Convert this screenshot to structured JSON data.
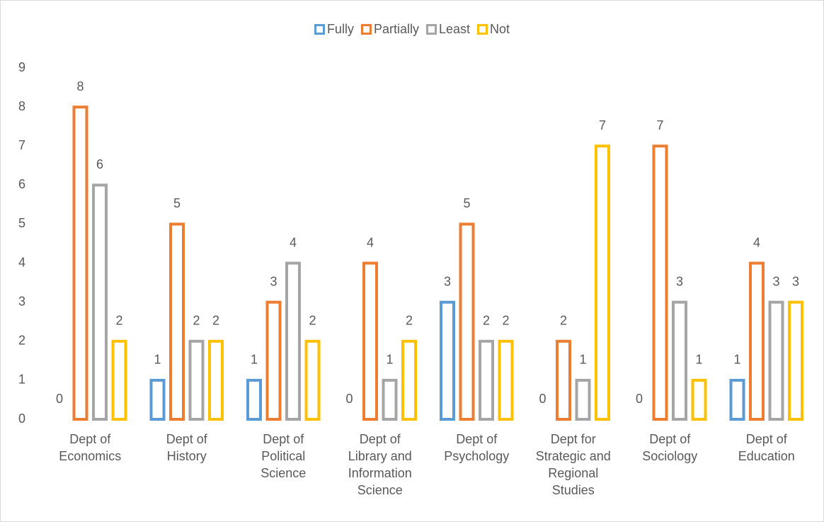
{
  "chart_data": {
    "type": "bar",
    "categories": [
      "Dept of Economics",
      "Dept of History",
      "Dept of Political Science",
      "Dept of Library and Information Science",
      "Dept of Psychology",
      "Dept for Strategic and Regional Studies",
      "Dept of Sociology",
      "Dept of Education"
    ],
    "series": [
      {
        "name": "Fully",
        "color": "#5b9bd5",
        "values": [
          0,
          1,
          1,
          0,
          3,
          0,
          0,
          1
        ]
      },
      {
        "name": "Partially",
        "color": "#ed7d31",
        "values": [
          8,
          5,
          3,
          4,
          5,
          2,
          7,
          4
        ]
      },
      {
        "name": "Least",
        "color": "#a5a5a5",
        "values": [
          6,
          2,
          4,
          1,
          2,
          1,
          3,
          3
        ]
      },
      {
        "name": "Not",
        "color": "#ffc000",
        "values": [
          2,
          2,
          2,
          2,
          2,
          7,
          1,
          3
        ]
      }
    ],
    "ylim": [
      0,
      9
    ],
    "yticks": [
      0,
      1,
      2,
      3,
      4,
      5,
      6,
      7,
      8,
      9
    ],
    "grid": false,
    "legend": "top"
  }
}
